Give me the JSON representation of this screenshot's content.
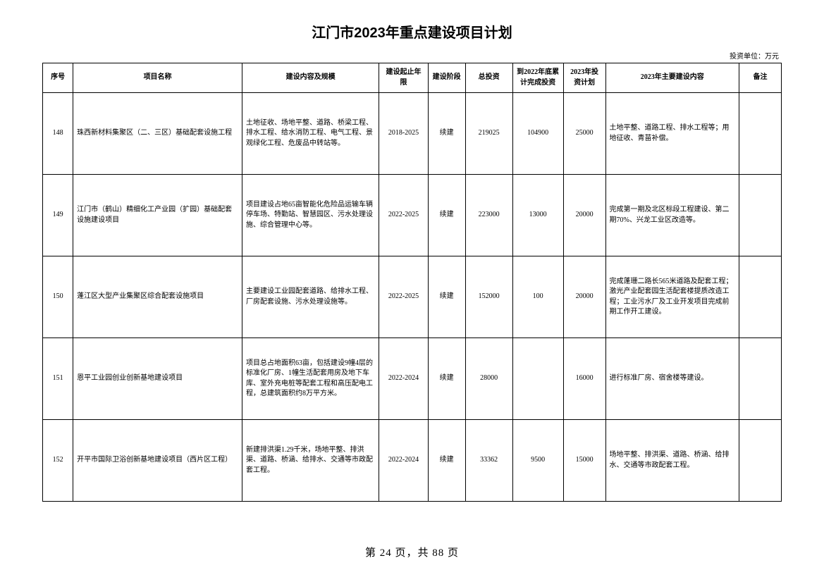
{
  "title": "江门市2023年重点建设项目计划",
  "unit_label": "投资单位：万元",
  "columns": {
    "seq": "序号",
    "name": "项目名称",
    "scope": "建设内容及规模",
    "period": "建设起止年限",
    "phase": "建设阶段",
    "total": "总投资",
    "done": "到2022年底累计完成投资",
    "plan": "2023年投资计划",
    "content": "2023年主要建设内容",
    "remark": "备注"
  },
  "rows": [
    {
      "seq": "148",
      "name": "珠西新材料集聚区（二、三区）基础配套设施工程",
      "scope": "土地征收、场地平整、道路、桥梁工程、排水工程、给水消防工程、电气工程、景观绿化工程、危废品中转站等。",
      "period": "2018-2025",
      "phase": "续建",
      "total": "219025",
      "done": "104900",
      "plan": "25000",
      "content": "土地平整、道路工程、排水工程等；用地征收、青苗补偿。",
      "remark": ""
    },
    {
      "seq": "149",
      "name": "江门市（鹤山）精细化工产业园（扩园）基础配套设施建设项目",
      "scope": "项目建设占地65亩智能化危险品运输车辆停车场、特勤站、智慧园区、污水处理设施、综合管理中心等。",
      "period": "2022-2025",
      "phase": "续建",
      "total": "223000",
      "done": "13000",
      "plan": "20000",
      "content": "完成第一期及北区标段工程建设、第二期70%、兴龙工业区改造等。",
      "remark": ""
    },
    {
      "seq": "150",
      "name": "蓬江区大型产业集聚区综合配套设施项目",
      "scope": "主要建设工业园配套道路、给排水工程、厂房配套设施、污水处理设施等。",
      "period": "2022-2025",
      "phase": "续建",
      "total": "152000",
      "done": "100",
      "plan": "20000",
      "content": "完成蓬珊二路长565米道路及配套工程；激光产业配套园生活配套楼提质改造工程；工业污水厂及工业开发项目完成前期工作开工建设。",
      "remark": ""
    },
    {
      "seq": "151",
      "name": "恩平工业园创业创新基地建设项目",
      "scope": "项目总占地面积63亩，包括建设9幢4层的标准化厂房、1幢生活配套用房及地下车库、室外充电桩等配套工程和高压配电工程，总建筑面积约8万平方米。",
      "period": "2022-2024",
      "phase": "续建",
      "total": "28000",
      "done": "",
      "plan": "16000",
      "content": "进行标准厂房、宿舍楼等建设。",
      "remark": ""
    },
    {
      "seq": "152",
      "name": "开平市国际卫浴创新基地建设项目（西片区工程）",
      "scope": "新建排洪渠1.29千米，场地平整、排洪渠、道路、桥涵、给排水、交通等市政配套工程。",
      "period": "2022-2024",
      "phase": "续建",
      "total": "33362",
      "done": "9500",
      "plan": "15000",
      "content": "场地平整、排洪渠、道路、桥涵、给排水、交通等市政配套工程。",
      "remark": ""
    }
  ],
  "pager": {
    "current": "24",
    "total": "88",
    "template_prefix": "第 ",
    "template_mid": " 页，共 ",
    "template_suffix": " 页"
  }
}
